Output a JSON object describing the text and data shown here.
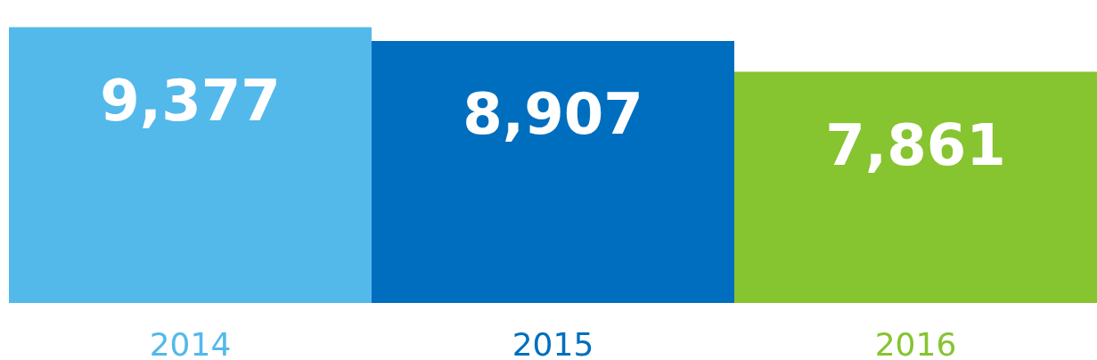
{
  "chart_data": {
    "type": "bar",
    "categories": [
      "2014",
      "2015",
      "2016"
    ],
    "values": [
      9377,
      8907,
      7861
    ],
    "value_labels": [
      "9,377",
      "8,907",
      "7,861"
    ],
    "colors": [
      "#52b9ea",
      "#006ebf",
      "#86c430"
    ]
  }
}
